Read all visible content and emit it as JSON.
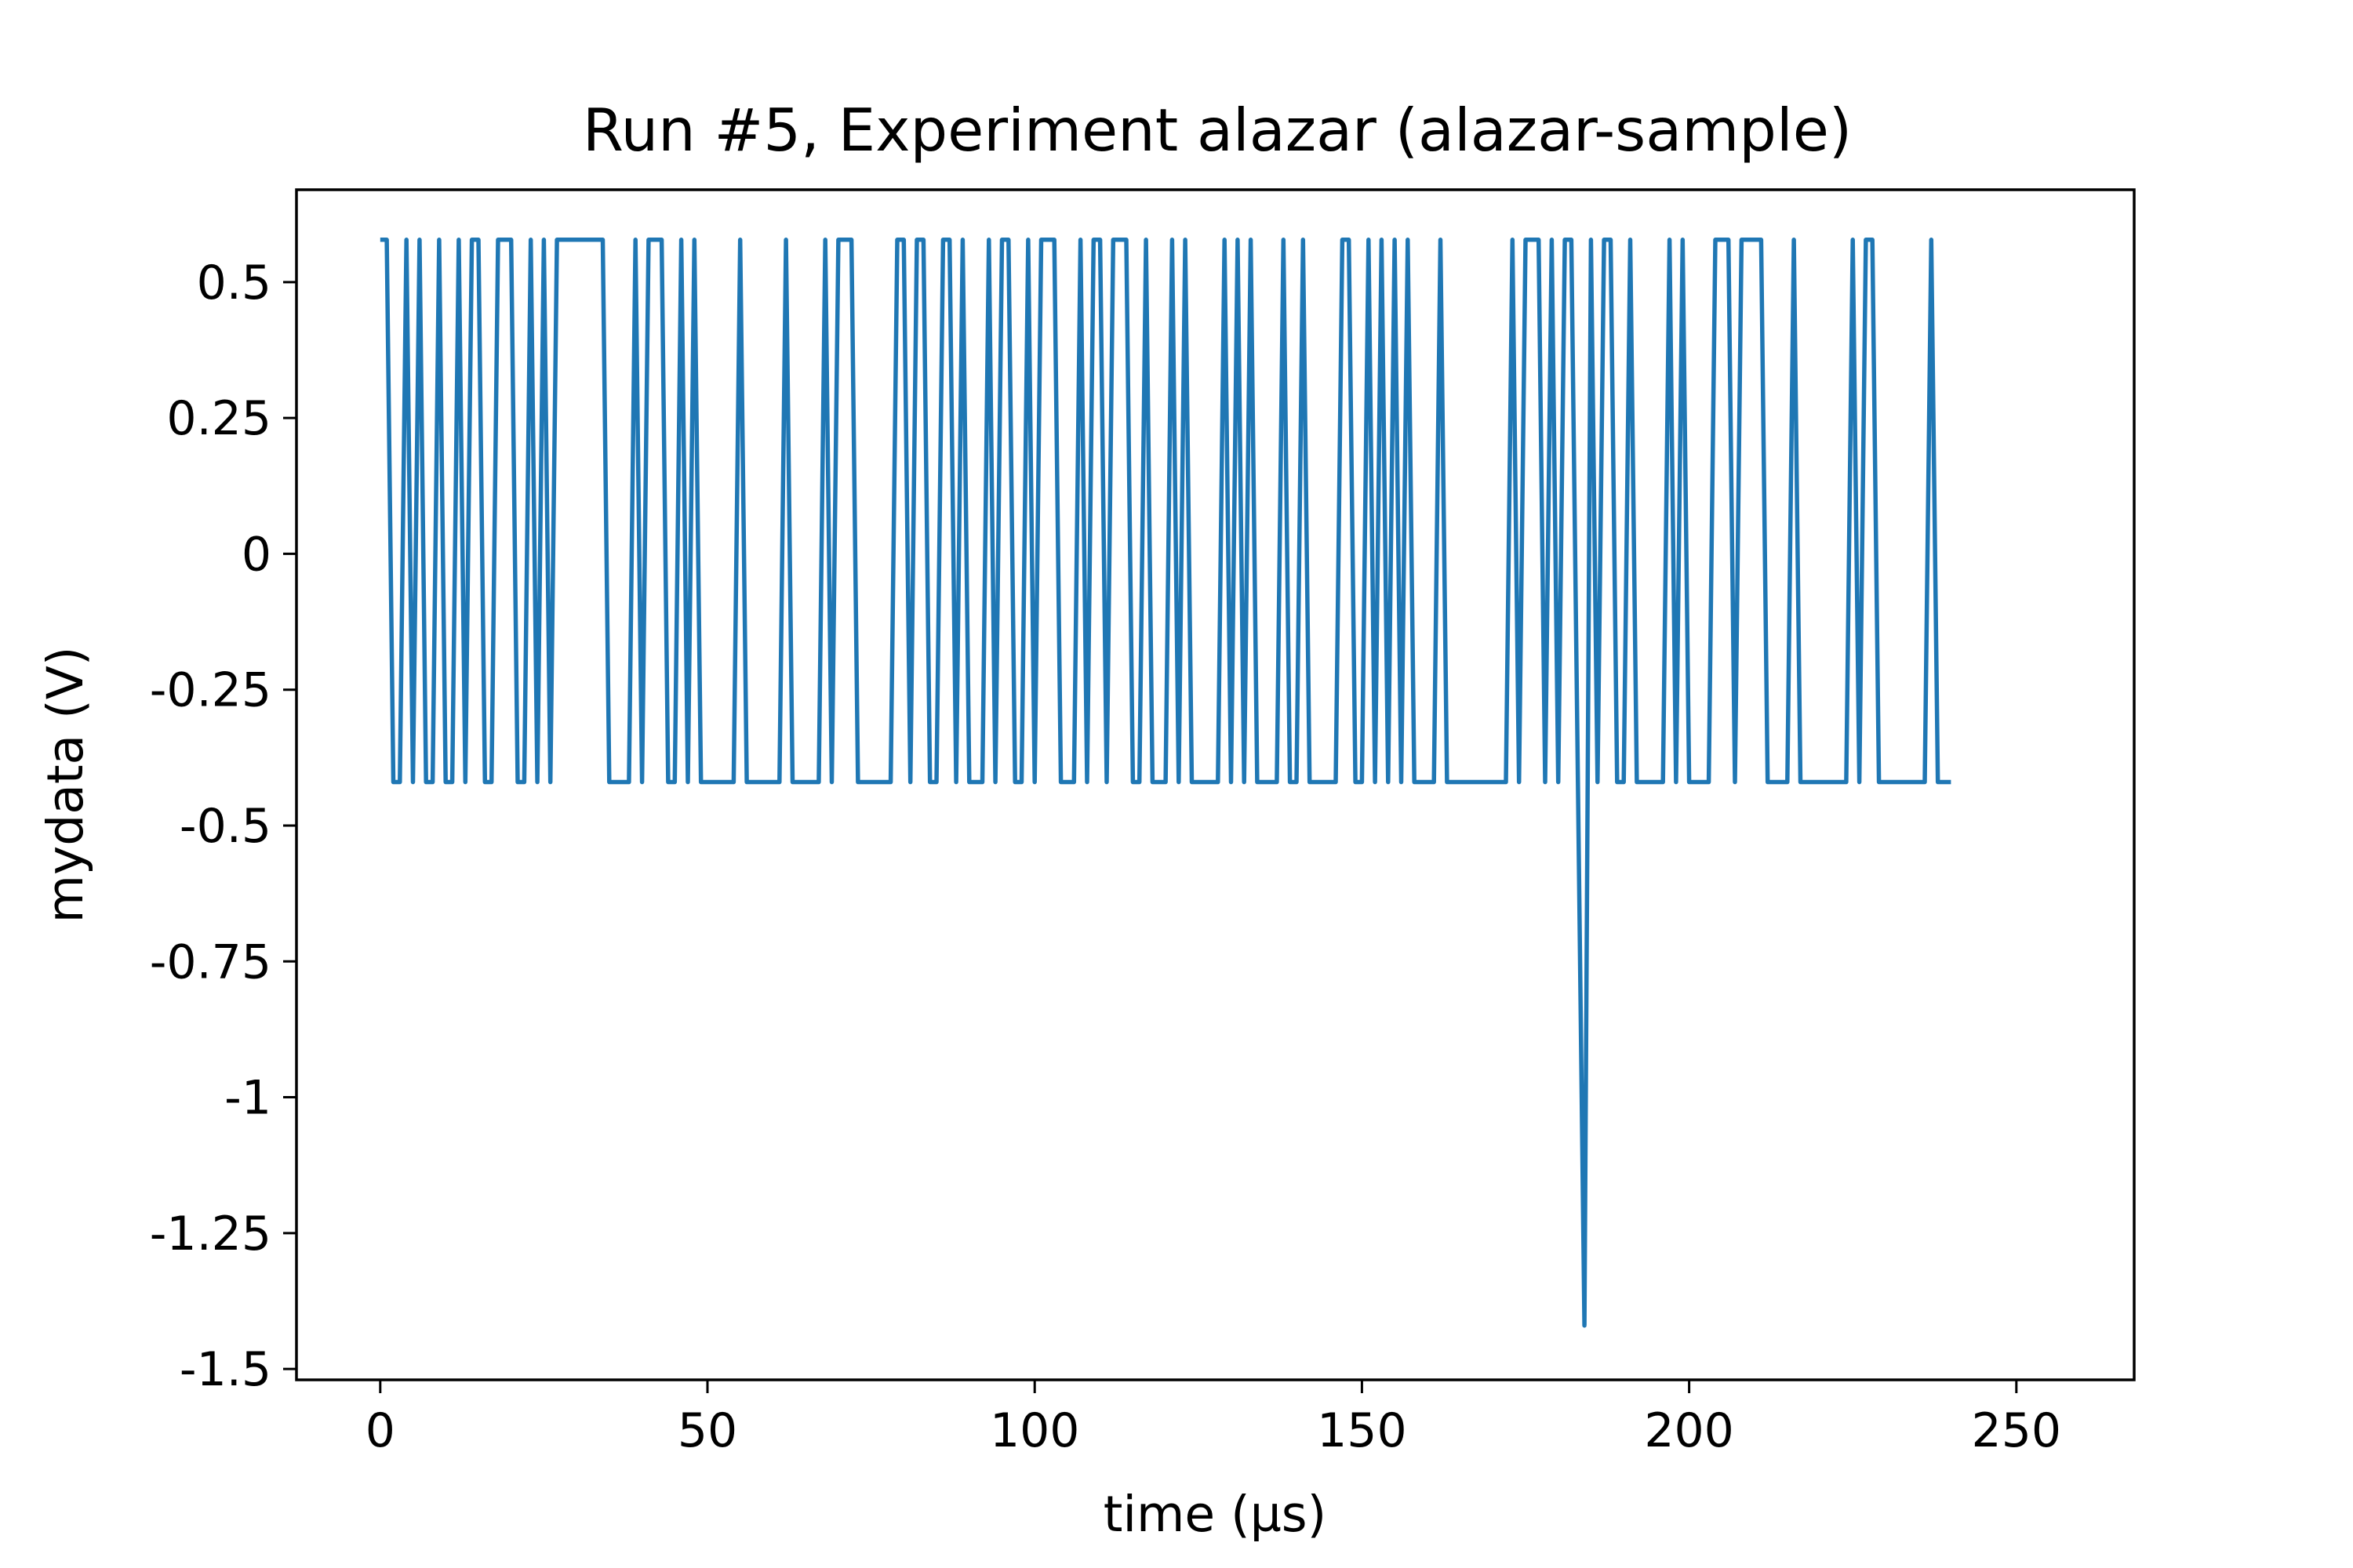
{
  "chart_data": {
    "type": "line",
    "title": "Run #5, Experiment alazar (alazar-sample)",
    "xlabel": "time (µs)",
    "ylabel": "mydata (V)",
    "xlim": [
      -12.8,
      268.0
    ],
    "ylim": [
      -1.52,
      0.67
    ],
    "xticks": [
      0,
      50,
      100,
      150,
      200,
      250
    ],
    "xtick_labels": [
      "0",
      "50",
      "100",
      "150",
      "200",
      "250"
    ],
    "yticks": [
      0.5,
      0.25,
      0,
      -0.25,
      -0.5,
      -0.75,
      -1,
      -1.25,
      -1.5
    ],
    "ytick_labels": [
      "0.5",
      "0.25",
      "0",
      "-0.25",
      "-0.5",
      "-0.75",
      "-1",
      "-1.25",
      "-1.5"
    ],
    "grid": false,
    "legend": "none",
    "series": [
      {
        "color": "#1f77b4",
        "x_start": 0,
        "x_step": 1,
        "high": 0.578,
        "low": -0.42,
        "spike_value": -1.42,
        "pattern": "HHLLHLHLLHLLHLHHLLHHHLLHLHLHHHHHHHHLLLLHLHHHLLHLHLLLLLLHLLLLLLHLLLLLHLHHHLLLLLLHHLHHLLHHLHLLLHLHHLLHLHHHLLLHLHHLHHHLLHLLLHLHLLLLLHLHLHLLLLHLLHLLLLLHHLLHLHLHLHLLLLHLLLLLLLLLLHLHHHLHLHHLLHLHHLLHLLLLLHLHLLLLHHHLHHHHLLLLHLLLLLLLLHLHHLLLLLLLLHLLL",
        "spike_index": 184
      }
    ]
  }
}
